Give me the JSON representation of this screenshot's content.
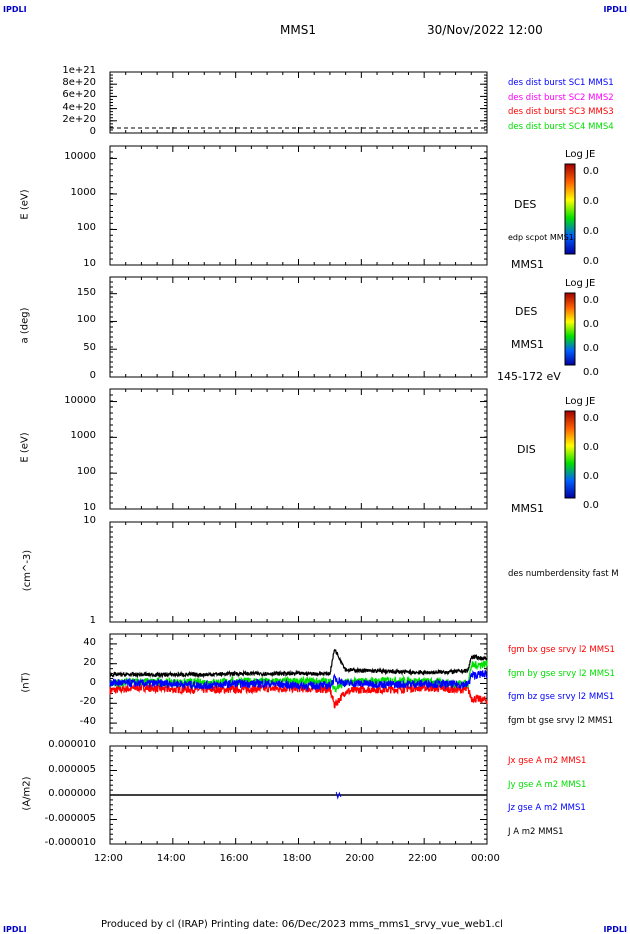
{
  "corners": {
    "tl": "IPDLI",
    "tr": "IPDLI",
    "bl": "IPDLI",
    "br": "IPDLI"
  },
  "header": {
    "spacecraft": "MMS1",
    "datetime": "30/Nov/2022 12:00"
  },
  "footer": "Produced by cl (IRAP)   Printing date: 06/Dec/2023   mms_mms1_srvy_vue_web1.cl",
  "colors": {
    "red": "#ff0000",
    "green": "#00e000",
    "blue": "#0000ff",
    "black": "#000000",
    "magenta": "#ff00ff"
  },
  "chart_data": {
    "type": "line",
    "xlabel": "",
    "x_ticks": [
      "12:00",
      "14:00",
      "16:00",
      "18:00",
      "20:00",
      "22:00",
      "00:00"
    ],
    "x_range_hours": [
      12,
      24
    ],
    "panels": [
      {
        "id": "p1",
        "type": "line",
        "ylabel": "",
        "yticks": [
          "0",
          "2e+20",
          "4e+20",
          "6e+20",
          "8e+20",
          "1e+21"
        ],
        "ylim": [
          0,
          1e+21
        ],
        "legend": [
          {
            "text": "des dist burst SC1 MMS1",
            "color": "#0000ff"
          },
          {
            "text": "des dist burst SC2 MMS2",
            "color": "#ff00ff"
          },
          {
            "text": "des dist burst SC3 MMS3",
            "color": "#ff0000"
          },
          {
            "text": "des dist burst SC4 MMS4",
            "color": "#00e000"
          }
        ]
      },
      {
        "id": "p2",
        "type": "heatmap",
        "ylabel": "E (eV)",
        "yticks": [
          "10",
          "100",
          "1000",
          "10000"
        ],
        "scale": "log",
        "labels": [
          "DES",
          "edp scpot MMS1",
          "MMS1"
        ],
        "colorbar": {
          "title": "Log JE",
          "ticks": [
            "0.0",
            "0.0",
            "0.0",
            "0.0"
          ]
        }
      },
      {
        "id": "p3",
        "type": "heatmap",
        "ylabel": "a (deg)",
        "yticks": [
          "0",
          "50",
          "100",
          "150"
        ],
        "ylim": [
          0,
          180
        ],
        "labels": [
          "DES",
          "MMS1",
          "145-172 eV"
        ],
        "colorbar": {
          "title": "Log JE",
          "ticks": [
            "0.0",
            "0.0",
            "0.0",
            "0.0"
          ]
        }
      },
      {
        "id": "p4",
        "type": "heatmap",
        "ylabel": "E (eV)",
        "yticks": [
          "10",
          "100",
          "1000",
          "10000"
        ],
        "scale": "log",
        "labels": [
          "DIS",
          "MMS1"
        ],
        "colorbar": {
          "title": "Log JE",
          "ticks": [
            "0.0",
            "0.0",
            "0.0",
            "0.0"
          ]
        }
      },
      {
        "id": "p5",
        "type": "line",
        "ylabel": "(cm^-3)",
        "yticks": [
          "1",
          "10"
        ],
        "scale": "log",
        "legend": [
          {
            "text": "des numberdensity fast M",
            "color": "#000000"
          }
        ]
      },
      {
        "id": "p6",
        "type": "line",
        "ylabel": "(nT)",
        "yticks": [
          "-40",
          "-20",
          "0",
          "20",
          "40"
        ],
        "ylim": [
          -50,
          50
        ],
        "legend": [
          {
            "text": "fgm bx gse srvy l2 MMS1",
            "color": "#ff0000"
          },
          {
            "text": "fgm by gse srvy l2 MMS1",
            "color": "#00e000"
          },
          {
            "text": "fgm bz gse srvy l2 MMS1",
            "color": "#0000ff"
          },
          {
            "text": "fgm bt gse srvy l2 MMS1",
            "color": "#000000"
          }
        ],
        "x": [
          12,
          13,
          14,
          15,
          16,
          17,
          18,
          19,
          19.15,
          19.5,
          20,
          21,
          22,
          23,
          23.4,
          23.5,
          24
        ],
        "series": [
          {
            "name": "bx",
            "color": "#ff0000",
            "values": [
              -7,
              -4,
              -6,
              -6,
              -6,
              -5,
              -5,
              -6,
              -22,
              -8,
              -6,
              -6,
              -4,
              -6,
              -6,
              -15,
              -17
            ]
          },
          {
            "name": "by",
            "color": "#00e000",
            "values": [
              0,
              2,
              1,
              1,
              2,
              2,
              2,
              2,
              -5,
              1,
              2,
              3,
              2,
              0,
              0,
              18,
              20
            ]
          },
          {
            "name": "bz",
            "color": "#0000ff",
            "values": [
              1,
              0,
              0,
              -2,
              0,
              0,
              -2,
              -2,
              5,
              0,
              0,
              -1,
              0,
              -1,
              -1,
              8,
              10
            ]
          },
          {
            "name": "bt",
            "color": "#000000",
            "values": [
              9,
              9,
              9,
              9,
              10,
              10,
              10,
              10,
              35,
              14,
              13,
              12,
              11,
              12,
              13,
              27,
              25
            ]
          }
        ]
      },
      {
        "id": "p7",
        "type": "line",
        "ylabel": "(A/m2)",
        "yticks": [
          "-0.000010",
          "-0.000005",
          "0.000000",
          "0.000005",
          "0.000010"
        ],
        "ylim": [
          -1e-05,
          1e-05
        ],
        "legend": [
          {
            "text": "Jx gse A m2 MMS1",
            "color": "#ff0000"
          },
          {
            "text": "Jy gse A m2 MMS1",
            "color": "#00e000"
          },
          {
            "text": "Jz gse A m2 MMS1",
            "color": "#0000ff"
          },
          {
            "text": "J A m2 MMS1",
            "color": "#000000"
          }
        ]
      }
    ]
  }
}
